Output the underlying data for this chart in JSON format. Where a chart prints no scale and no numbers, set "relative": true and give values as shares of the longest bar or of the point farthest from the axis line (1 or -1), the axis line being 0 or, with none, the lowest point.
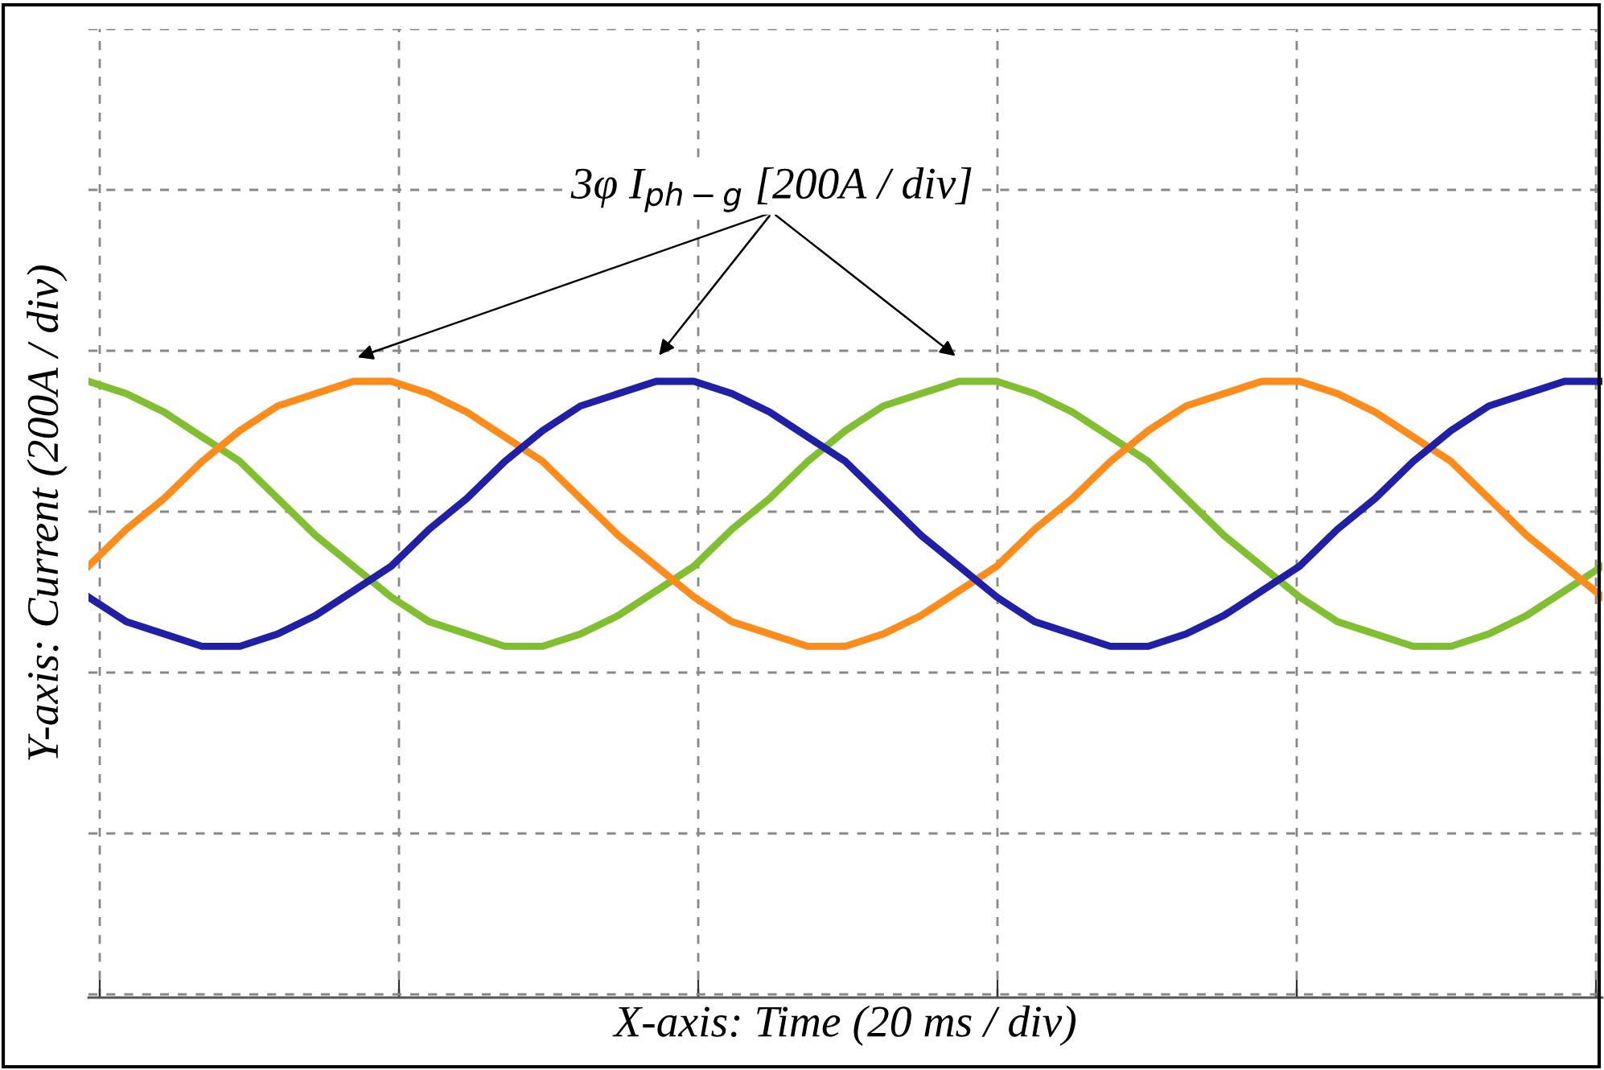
{
  "chart_data": {
    "type": "line",
    "relative": true,
    "xlabel": "X-axis: Time (20 ms / div)",
    "ylabel": "Y-axis: Current (200A / div)",
    "annotations": [
      "3φ I$_{ph−g}$ [200A / div]"
    ],
    "grid": true,
    "legend": false,
    "marker": "none",
    "line_style": "solid",
    "categories": [
      null,
      null,
      null,
      null,
      null,
      null,
      null,
      null,
      null,
      null,
      null,
      null,
      null,
      null,
      null,
      null,
      null,
      null,
      null,
      null,
      null,
      null,
      null,
      null,
      null,
      null,
      null,
      null,
      null,
      null,
      null,
      null,
      null,
      null,
      null,
      null,
      null,
      null,
      null,
      null,
      null
    ],
    "series": [
      {
        "color": "#80c030",
        "values": [
          1.0,
          0.98,
          0.95,
          0.91,
          0.87,
          0.81,
          0.75,
          0.7,
          0.65,
          0.61,
          0.59,
          0.57,
          0.57,
          0.59,
          0.62,
          0.66,
          0.7,
          0.76,
          0.81,
          0.87,
          0.92,
          0.96,
          0.98,
          1.0,
          1.0,
          0.98,
          0.95,
          0.91,
          0.87,
          0.81,
          0.75,
          0.7,
          0.65,
          0.61,
          0.59,
          0.57,
          0.57,
          0.59,
          0.62,
          0.66,
          0.7
        ]
      },
      {
        "color": "#ff8c1a",
        "values": [
          0.7,
          0.76,
          0.81,
          0.87,
          0.92,
          0.96,
          0.98,
          1.0,
          1.0,
          0.98,
          0.95,
          0.91,
          0.87,
          0.81,
          0.75,
          0.7,
          0.65,
          0.61,
          0.59,
          0.57,
          0.57,
          0.59,
          0.62,
          0.66,
          0.7,
          0.76,
          0.81,
          0.87,
          0.92,
          0.96,
          0.98,
          1.0,
          1.0,
          0.98,
          0.95,
          0.91,
          0.87,
          0.81,
          0.75,
          0.7,
          0.65
        ]
      },
      {
        "color": "#1f1fa8",
        "values": [
          0.65,
          0.61,
          0.59,
          0.57,
          0.57,
          0.59,
          0.62,
          0.66,
          0.7,
          0.76,
          0.81,
          0.87,
          0.92,
          0.96,
          0.98,
          1.0,
          1.0,
          0.98,
          0.95,
          0.91,
          0.87,
          0.81,
          0.75,
          0.7,
          0.65,
          0.61,
          0.59,
          0.57,
          0.57,
          0.59,
          0.62,
          0.66,
          0.7,
          0.76,
          0.81,
          0.87,
          0.92,
          0.96,
          0.98,
          1.0,
          1.0
        ]
      }
    ]
  }
}
